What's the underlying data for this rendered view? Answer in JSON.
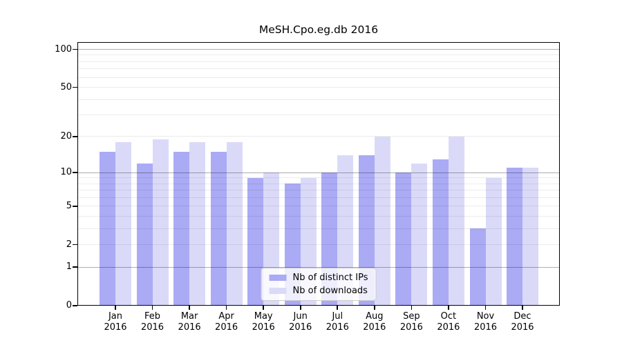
{
  "chart_data": {
    "type": "bar",
    "title": "MeSH.Cpo.eg.db 2016",
    "categories": [
      "Jan",
      "Feb",
      "Mar",
      "Apr",
      "May",
      "Jun",
      "Jul",
      "Aug",
      "Sep",
      "Oct",
      "Nov",
      "Dec"
    ],
    "year": "2016",
    "series": [
      {
        "name": "Nb of distinct IPs",
        "color": "#aaaaf5",
        "values": [
          15,
          12,
          15,
          15,
          9,
          8,
          10,
          14,
          10,
          13,
          3,
          11
        ]
      },
      {
        "name": "Nb of downloads",
        "color": "#dadaf8",
        "values": [
          18,
          19,
          18,
          18,
          10,
          9,
          14,
          20,
          12,
          20,
          9,
          11
        ]
      }
    ],
    "yscale": "log1p",
    "ylim": [
      0,
      114
    ],
    "yticks": [
      0,
      1,
      2,
      5,
      10,
      20,
      50,
      100
    ],
    "gridlines_major": [
      1,
      10,
      100
    ],
    "gridlines_minor": [
      2,
      3,
      4,
      5,
      6,
      7,
      8,
      9,
      20,
      30,
      40,
      50,
      60,
      70,
      80,
      90
    ],
    "grid": true,
    "legend_position": "lower center"
  }
}
